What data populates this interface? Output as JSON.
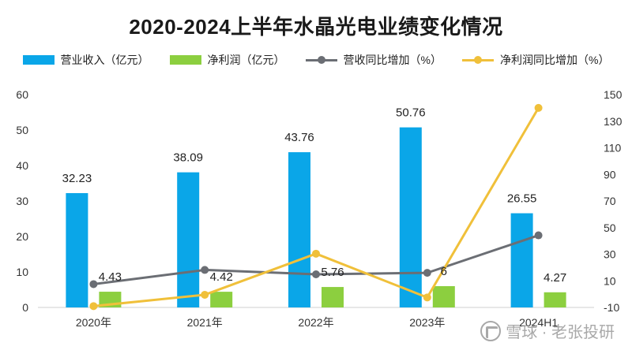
{
  "chart_data": {
    "type": "bar",
    "title": "2020-2024上半年水晶光电业绩变化情况",
    "categories": [
      "2020年",
      "2021年",
      "2022年",
      "2023年",
      "2024H1"
    ],
    "series": [
      {
        "name": "营业收入（亿元）",
        "kind": "bar",
        "axis": "left",
        "color": "#0aa6e8",
        "values": [
          32.23,
          38.09,
          43.76,
          50.76,
          26.55
        ],
        "labels": [
          "32.23",
          "38.09",
          "43.76",
          "50.76",
          "26.55"
        ]
      },
      {
        "name": "净利润（亿元）",
        "kind": "bar",
        "axis": "left",
        "color": "#8ccf3f",
        "values": [
          4.43,
          4.42,
          5.76,
          6.0,
          4.27
        ],
        "labels": [
          "4.43",
          "4.42",
          "5.76",
          "6",
          "4.27"
        ]
      },
      {
        "name": "营收同比增加（%）",
        "kind": "line",
        "axis": "right",
        "color": "#6b6e74",
        "values": [
          7.5,
          18.2,
          14.9,
          16.0,
          44.2
        ]
      },
      {
        "name": "净利润同比增加（%）",
        "kind": "line",
        "axis": "right",
        "color": "#f0c03a",
        "values": [
          -9.0,
          -0.5,
          30.4,
          -2.5,
          140.0
        ]
      }
    ],
    "y_left": {
      "min": 0,
      "max": 60,
      "ticks": [
        "0",
        "10",
        "20",
        "30",
        "40",
        "50",
        "60"
      ]
    },
    "y_right": {
      "min": -10,
      "max": 150,
      "ticks": [
        "-10",
        "10",
        "30",
        "50",
        "70",
        "90",
        "110",
        "130",
        "150"
      ]
    },
    "grid": false,
    "legend_position": "top"
  },
  "watermark": {
    "text": "雪球 · 老张投研",
    "icon": "snowball-logo-icon"
  }
}
